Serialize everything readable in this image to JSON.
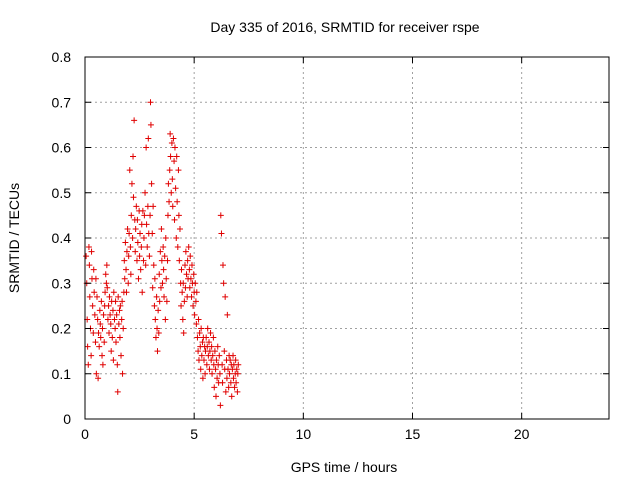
{
  "chart_data": {
    "type": "scatter",
    "title": "Day 335 of 2016, SRMTID for receiver rspe",
    "xlabel": "GPS time / hours",
    "ylabel": "SRMTID / TECUs",
    "xlim": [
      0,
      24
    ],
    "ylim": [
      0,
      0.8
    ],
    "xticks": [
      0,
      5,
      10,
      15,
      20
    ],
    "yticks": [
      0,
      0.1,
      0.2,
      0.3,
      0.4,
      0.5,
      0.6,
      0.7,
      0.8
    ],
    "xtick_labels": [
      "0",
      "5",
      "10",
      "15",
      "20"
    ],
    "ytick_labels": [
      "0",
      "0.1",
      "0.2",
      "0.3",
      "0.4",
      "0.5",
      "0.6",
      "0.7",
      "0.8"
    ],
    "grid": true,
    "marker": "+",
    "color": "#e00000",
    "series": [
      {
        "name": "SRMTID",
        "points": [
          [
            0.05,
            0.36
          ],
          [
            0.08,
            0.3
          ],
          [
            0.1,
            0.22
          ],
          [
            0.12,
            0.16
          ],
          [
            0.15,
            0.12
          ],
          [
            0.18,
            0.38
          ],
          [
            0.2,
            0.34
          ],
          [
            0.22,
            0.27
          ],
          [
            0.25,
            0.2
          ],
          [
            0.28,
            0.14
          ],
          [
            0.3,
            0.37
          ],
          [
            0.32,
            0.31
          ],
          [
            0.35,
            0.25
          ],
          [
            0.38,
            0.19
          ],
          [
            0.4,
            0.33
          ],
          [
            0.42,
            0.28
          ],
          [
            0.45,
            0.23
          ],
          [
            0.48,
            0.17
          ],
          [
            0.5,
            0.31
          ],
          [
            0.52,
            0.1
          ],
          [
            0.55,
            0.27
          ],
          [
            0.58,
            0.22
          ],
          [
            0.6,
            0.09
          ],
          [
            0.62,
            0.19
          ],
          [
            0.65,
            0.16
          ],
          [
            0.68,
            0.24
          ],
          [
            0.7,
            0.21
          ],
          [
            0.72,
            0.18
          ],
          [
            0.75,
            0.26
          ],
          [
            0.78,
            0.14
          ],
          [
            0.8,
            0.2
          ],
          [
            0.82,
            0.12
          ],
          [
            0.85,
            0.23
          ],
          [
            0.88,
            0.17
          ],
          [
            0.9,
            0.25
          ],
          [
            0.92,
            0.28
          ],
          [
            0.95,
            0.32
          ],
          [
            0.98,
            0.3
          ],
          [
            1.0,
            0.34
          ],
          [
            1.02,
            0.29
          ],
          [
            1.05,
            0.22
          ],
          [
            1.08,
            0.25
          ],
          [
            1.1,
            0.19
          ],
          [
            1.12,
            0.27
          ],
          [
            1.15,
            0.23
          ],
          [
            1.18,
            0.21
          ],
          [
            1.2,
            0.15
          ],
          [
            1.22,
            0.26
          ],
          [
            1.25,
            0.18
          ],
          [
            1.28,
            0.24
          ],
          [
            1.3,
            0.13
          ],
          [
            1.32,
            0.28
          ],
          [
            1.35,
            0.22
          ],
          [
            1.38,
            0.2
          ],
          [
            1.4,
            0.26
          ],
          [
            1.42,
            0.17
          ],
          [
            1.45,
            0.23
          ],
          [
            1.48,
            0.12
          ],
          [
            1.5,
            0.06
          ],
          [
            1.52,
            0.27
          ],
          [
            1.55,
            0.21
          ],
          [
            1.58,
            0.24
          ],
          [
            1.6,
            0.18
          ],
          [
            1.62,
            0.25
          ],
          [
            1.65,
            0.14
          ],
          [
            1.68,
            0.22
          ],
          [
            1.7,
            0.26
          ],
          [
            1.72,
            0.1
          ],
          [
            1.75,
            0.2
          ],
          [
            1.78,
            0.28
          ],
          [
            1.8,
            0.35
          ],
          [
            1.82,
            0.31
          ],
          [
            1.85,
            0.39
          ],
          [
            1.88,
            0.33
          ],
          [
            1.9,
            0.28
          ],
          [
            1.92,
            0.37
          ],
          [
            1.95,
            0.42
          ],
          [
            1.98,
            0.3
          ],
          [
            2.0,
            0.36
          ],
          [
            2.02,
            0.41
          ],
          [
            2.05,
            0.55
          ],
          [
            2.08,
            0.38
          ],
          [
            2.1,
            0.32
          ],
          [
            2.12,
            0.45
          ],
          [
            2.15,
            0.52
          ],
          [
            2.18,
            0.4
          ],
          [
            2.2,
            0.58
          ],
          [
            2.22,
            0.49
          ],
          [
            2.25,
            0.66
          ],
          [
            2.28,
            0.44
          ],
          [
            2.3,
            0.37
          ],
          [
            2.32,
            0.42
          ],
          [
            2.35,
            0.47
          ],
          [
            2.38,
            0.35
          ],
          [
            2.4,
            0.44
          ],
          [
            2.42,
            0.39
          ],
          [
            2.45,
            0.31
          ],
          [
            2.48,
            0.46
          ],
          [
            2.5,
            0.36
          ],
          [
            2.52,
            0.41
          ],
          [
            2.55,
            0.33
          ],
          [
            2.58,
            0.38
          ],
          [
            2.6,
            0.43
          ],
          [
            2.62,
            0.28
          ],
          [
            2.65,
            0.46
          ],
          [
            2.68,
            0.35
          ],
          [
            2.7,
            0.4
          ],
          [
            2.72,
            0.45
          ],
          [
            2.75,
            0.5
          ],
          [
            2.78,
            0.34
          ],
          [
            2.8,
            0.6
          ],
          [
            2.82,
            0.43
          ],
          [
            2.85,
            0.38
          ],
          [
            2.88,
            0.47
          ],
          [
            2.9,
            0.62
          ],
          [
            2.92,
            0.41
          ],
          [
            2.95,
            0.36
          ],
          [
            2.98,
            0.45
          ],
          [
            3.0,
            0.7
          ],
          [
            3.02,
            0.65
          ],
          [
            3.05,
            0.52
          ],
          [
            3.08,
            0.41
          ],
          [
            3.1,
            0.29
          ],
          [
            3.12,
            0.47
          ],
          [
            3.15,
            0.34
          ],
          [
            3.18,
            0.25
          ],
          [
            3.2,
            0.31
          ],
          [
            3.22,
            0.22
          ],
          [
            3.25,
            0.18
          ],
          [
            3.28,
            0.27
          ],
          [
            3.3,
            0.2
          ],
          [
            3.32,
            0.15
          ],
          [
            3.35,
            0.24
          ],
          [
            3.38,
            0.19
          ],
          [
            3.4,
            0.32
          ],
          [
            3.42,
            0.26
          ],
          [
            3.45,
            0.37
          ],
          [
            3.48,
            0.29
          ],
          [
            3.5,
            0.42
          ],
          [
            3.52,
            0.35
          ],
          [
            3.55,
            0.3
          ],
          [
            3.58,
            0.38
          ],
          [
            3.6,
            0.33
          ],
          [
            3.62,
            0.27
          ],
          [
            3.65,
            0.36
          ],
          [
            3.68,
            0.22
          ],
          [
            3.7,
            0.4
          ],
          [
            3.72,
            0.31
          ],
          [
            3.75,
            0.26
          ],
          [
            3.78,
            0.35
          ],
          [
            3.8,
            0.45
          ],
          [
            3.82,
            0.52
          ],
          [
            3.85,
            0.48
          ],
          [
            3.88,
            0.55
          ],
          [
            3.9,
            0.63
          ],
          [
            3.92,
            0.58
          ],
          [
            3.95,
            0.5
          ],
          [
            3.98,
            0.61
          ],
          [
            4.0,
            0.53
          ],
          [
            4.02,
            0.47
          ],
          [
            4.05,
            0.62
          ],
          [
            4.08,
            0.57
          ],
          [
            4.1,
            0.44
          ],
          [
            4.12,
            0.6
          ],
          [
            4.15,
            0.51
          ],
          [
            4.18,
            0.4
          ],
          [
            4.2,
            0.58
          ],
          [
            4.22,
            0.48
          ],
          [
            4.25,
            0.38
          ],
          [
            4.28,
            0.55
          ],
          [
            4.3,
            0.45
          ],
          [
            4.32,
            0.35
          ],
          [
            4.35,
            0.42
          ],
          [
            4.38,
            0.3
          ],
          [
            4.4,
            0.25
          ],
          [
            4.42,
            0.33
          ],
          [
            4.45,
            0.28
          ],
          [
            4.48,
            0.22
          ],
          [
            4.5,
            0.3
          ],
          [
            4.52,
            0.19
          ],
          [
            4.55,
            0.26
          ],
          [
            4.58,
            0.34
          ],
          [
            4.6,
            0.29
          ],
          [
            4.62,
            0.37
          ],
          [
            4.65,
            0.32
          ],
          [
            4.68,
            0.27
          ],
          [
            4.7,
            0.35
          ],
          [
            4.72,
            0.31
          ],
          [
            4.75,
            0.38
          ],
          [
            4.78,
            0.33
          ],
          [
            4.8,
            0.29
          ],
          [
            4.82,
            0.36
          ],
          [
            4.85,
            0.31
          ],
          [
            4.88,
            0.27
          ],
          [
            4.9,
            0.34
          ],
          [
            4.92,
            0.3
          ],
          [
            4.95,
            0.25
          ],
          [
            4.98,
            0.32
          ],
          [
            5.0,
            0.28
          ],
          [
            5.02,
            0.23
          ],
          [
            5.05,
            0.3
          ],
          [
            5.08,
            0.26
          ],
          [
            5.1,
            0.21
          ],
          [
            5.12,
            0.28
          ],
          [
            5.15,
            0.18
          ],
          [
            5.18,
            0.15
          ],
          [
            5.2,
            0.22
          ],
          [
            5.22,
            0.13
          ],
          [
            5.25,
            0.19
          ],
          [
            5.28,
            0.16
          ],
          [
            5.3,
            0.11
          ],
          [
            5.32,
            0.2
          ],
          [
            5.35,
            0.14
          ],
          [
            5.38,
            0.17
          ],
          [
            5.4,
            0.09
          ],
          [
            5.42,
            0.18
          ],
          [
            5.45,
            0.13
          ],
          [
            5.48,
            0.16
          ],
          [
            5.5,
            0.1
          ],
          [
            5.52,
            0.15
          ],
          [
            5.55,
            0.18
          ],
          [
            5.58,
            0.12
          ],
          [
            5.6,
            0.16
          ],
          [
            5.62,
            0.2
          ],
          [
            5.65,
            0.14
          ],
          [
            5.68,
            0.17
          ],
          [
            5.7,
            0.11
          ],
          [
            5.72,
            0.15
          ],
          [
            5.75,
            0.19
          ],
          [
            5.78,
            0.13
          ],
          [
            5.8,
            0.16
          ],
          [
            5.82,
            0.1
          ],
          [
            5.85,
            0.14
          ],
          [
            5.88,
            0.18
          ],
          [
            5.9,
            0.12
          ],
          [
            5.92,
            0.07
          ],
          [
            5.95,
            0.15
          ],
          [
            5.98,
            0.11
          ],
          [
            6.0,
            0.05
          ],
          [
            6.02,
            0.13
          ],
          [
            6.05,
            0.09
          ],
          [
            6.08,
            0.16
          ],
          [
            6.1,
            0.12
          ],
          [
            6.12,
            0.08
          ],
          [
            6.15,
            0.14
          ],
          [
            6.18,
            0.1
          ],
          [
            6.2,
            0.03
          ],
          [
            6.22,
            0.45
          ],
          [
            6.25,
            0.41
          ],
          [
            6.28,
            0.12
          ],
          [
            6.3,
            0.08
          ],
          [
            6.32,
            0.34
          ],
          [
            6.35,
            0.3
          ],
          [
            6.38,
            0.15
          ],
          [
            6.4,
            0.11
          ],
          [
            6.42,
            0.27
          ],
          [
            6.45,
            0.06
          ],
          [
            6.48,
            0.13
          ],
          [
            6.5,
            0.09
          ],
          [
            6.52,
            0.23
          ],
          [
            6.55,
            0.11
          ],
          [
            6.58,
            0.07
          ],
          [
            6.6,
            0.14
          ],
          [
            6.62,
            0.1
          ],
          [
            6.65,
            0.13
          ],
          [
            6.68,
            0.08
          ],
          [
            6.7,
            0.12
          ],
          [
            6.72,
            0.05
          ],
          [
            6.75,
            0.11
          ],
          [
            6.78,
            0.14
          ],
          [
            6.8,
            0.09
          ],
          [
            6.82,
            0.12
          ],
          [
            6.85,
            0.07
          ],
          [
            6.88,
            0.1
          ],
          [
            6.9,
            0.13
          ],
          [
            6.92,
            0.08
          ],
          [
            6.95,
            0.11
          ],
          [
            6.98,
            0.06
          ],
          [
            7.0,
            0.1
          ],
          [
            7.02,
            0.12
          ]
        ]
      }
    ]
  }
}
